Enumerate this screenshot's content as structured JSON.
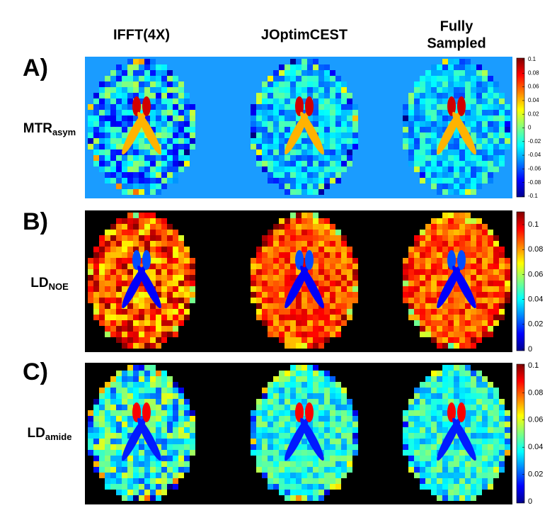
{
  "columns": [
    [
      "IFFT(4X)"
    ],
    [
      "JOptimCEST"
    ],
    [
      "Fully",
      "Sampled"
    ]
  ],
  "rows": [
    {
      "letter": "A)",
      "name": "MTR",
      "subscript": "asym",
      "colorbar_ticks": [
        "0.1",
        "0.08",
        "0.06",
        "0.04",
        "0.02",
        "0",
        "-0.02",
        "-0.04",
        "-0.06",
        "-0.08",
        "-0.1"
      ]
    },
    {
      "letter": "B)",
      "name": "LD",
      "subscript": "NOE",
      "colorbar_ticks": [
        "0.1",
        "0.08",
        "0.06",
        "0.04",
        "0.02",
        "0"
      ]
    },
    {
      "letter": "C)",
      "name": "LD",
      "subscript": "amide",
      "colorbar_ticks": [
        "0.1",
        "0.08",
        "0.06",
        "0.04",
        "0.02",
        "0"
      ]
    }
  ]
}
